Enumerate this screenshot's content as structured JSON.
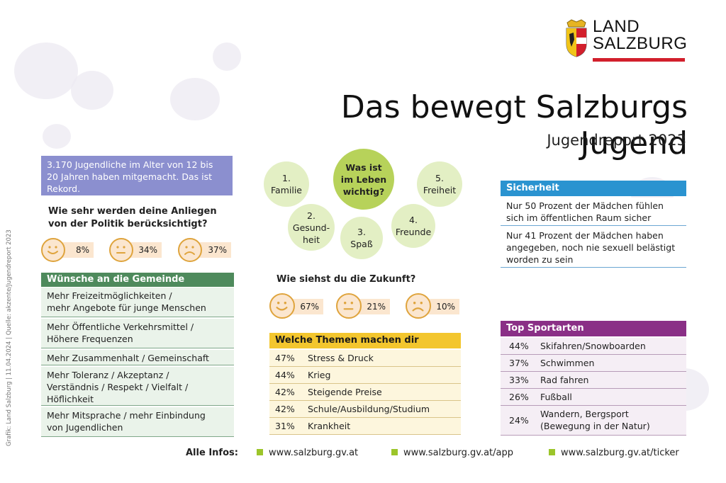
{
  "logo": {
    "line1": "LAND",
    "line2": "SALZBURG"
  },
  "title": "Das bewegt Salzburgs Jugend",
  "subtitle": "Jugendreport 2023",
  "side_credit": "Grafik: Land Salzburg | 11.04.2024 | Quelle: akzente/Jugendreport 2023",
  "intro": "3.170 Jugendliche im Alter von 12 bis 20 Jahren haben mitgemacht. Das ist Rekord.",
  "politik": {
    "question_line1": "Wie sehr werden deine Anliegen",
    "question_line2": "von der Politik berücksichtigt?",
    "answers": [
      {
        "mood": "happy",
        "value": "8%"
      },
      {
        "mood": "neutral",
        "value": "34%"
      },
      {
        "mood": "sad",
        "value": "37%"
      }
    ]
  },
  "wuensche": {
    "heading": "Wünsche an die Gemeinde",
    "items": [
      {
        "line1": "Mehr Freizeitmöglichkeiten /",
        "line2": "mehr Angebote für junge Menschen",
        "line3": ""
      },
      {
        "line1": "Mehr Öffentliche Verkehrsmittel /",
        "line2": "Höhere Frequenzen",
        "line3": ""
      },
      {
        "line1": "Mehr Zusammenhalt / Gemeinschaft",
        "line2": "",
        "line3": ""
      },
      {
        "line1": "Mehr Toleranz / Akzeptanz /",
        "line2": "Verständnis / Respekt / Vielfalt /",
        "line3": "Höflichkeit"
      },
      {
        "line1": "Mehr Mitsprache / mehr Einbindung",
        "line2": "von Jugendlichen",
        "line3": ""
      }
    ]
  },
  "wichtig": {
    "center_line1": "Was ist",
    "center_line2": "im Leben",
    "center_line3": "wichtig?",
    "items": [
      {
        "line1": "1.",
        "line2": "Familie",
        "line3": ""
      },
      {
        "line1": "2.",
        "line2": "Gesund-",
        "line3": "heit"
      },
      {
        "line1": "3.",
        "line2": "Spaß",
        "line3": ""
      },
      {
        "line1": "4.",
        "line2": "Freunde",
        "line3": ""
      },
      {
        "line1": "5.",
        "line2": "Freiheit",
        "line3": ""
      }
    ]
  },
  "zukunft": {
    "question": "Wie siehst du die Zukunft?",
    "answers": [
      {
        "mood": "happy",
        "value": "67%"
      },
      {
        "mood": "neutral",
        "value": "21%"
      },
      {
        "mood": "sad",
        "value": "10%"
      }
    ]
  },
  "sorgen": {
    "heading": "Welche Themen machen dir Sorgen?",
    "items": [
      {
        "pct": "47%",
        "label": "Stress & Druck"
      },
      {
        "pct": "44%",
        "label": "Krieg"
      },
      {
        "pct": "42%",
        "label": "Steigende Preise"
      },
      {
        "pct": "42%",
        "label": "Schule/Ausbildung/Studium"
      },
      {
        "pct": "31%",
        "label": "Krankheit"
      }
    ]
  },
  "sicherheit": {
    "heading": "Sicherheit",
    "items": [
      {
        "line1": "Nur 50 Prozent der Mädchen fühlen",
        "line2": "sich im öffentlichen Raum sicher",
        "line3": ""
      },
      {
        "line1": "Nur 41 Prozent der Mädchen haben",
        "line2": "angegeben, noch nie sexuell belästigt",
        "line3": "worden zu sein"
      }
    ]
  },
  "sport": {
    "heading": "Top Sportarten",
    "items": [
      {
        "pct": "44%",
        "line1": "Skifahren/Snowboarden",
        "line2": ""
      },
      {
        "pct": "37%",
        "line1": "Schwimmen",
        "line2": ""
      },
      {
        "pct": "33%",
        "line1": "Rad fahren",
        "line2": ""
      },
      {
        "pct": "26%",
        "line1": "Fußball",
        "line2": ""
      },
      {
        "pct": "24%",
        "line1": "Wandern, Bergsport",
        "line2": "(Bewegung in der Natur)"
      }
    ]
  },
  "footer": {
    "label": "Alle Infos:",
    "links": [
      "www.salzburg.gv.at",
      "www.salzburg.gv.at/app",
      "www.salzburg.gv.at/ticker"
    ]
  },
  "colors": {
    "intro": "#8b8fcf",
    "wuensche": "#4e8a5c",
    "sorgen": "#f3c62e",
    "sicherheit": "#2a93d0",
    "sport": "#8a2f86",
    "bubble": "#e3efc4",
    "bubble_center": "#b7d25a",
    "face": "#dfa43d",
    "logo_red": "#d21f2c",
    "footer_square": "#9cc52a"
  }
}
